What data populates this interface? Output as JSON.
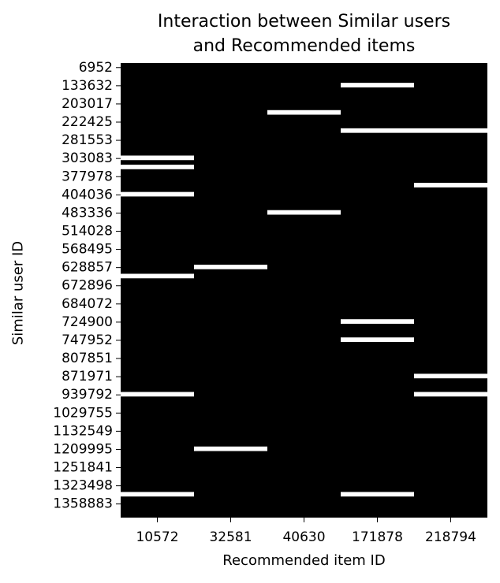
{
  "chart_data": {
    "type": "heatmap",
    "title_line1": "Interaction between Similar users",
    "title_line2": "and Recommended items",
    "xlabel": "Recommended item ID",
    "ylabel": "Similar user ID",
    "x_categories": [
      "10572",
      "32581",
      "40630",
      "171878",
      "218794"
    ],
    "y_tick_labels": [
      "6952",
      "133632",
      "203017",
      "222425",
      "281553",
      "303083",
      "377978",
      "404036",
      "483336",
      "514028",
      "568495",
      "628857",
      "672896",
      "684072",
      "724900",
      "747952",
      "807851",
      "871971",
      "939792",
      "1029755",
      "1132549",
      "1209995",
      "1251841",
      "1323498",
      "1358883"
    ],
    "colors": {
      "background": "#000000",
      "interaction": "#ffffff"
    },
    "legend": "none",
    "grid": false,
    "interactions": [
      {
        "item": "171878",
        "user_row": 2
      },
      {
        "item": "40630",
        "user_row": 5
      },
      {
        "item": "171878",
        "user_row": 7
      },
      {
        "item": "218794",
        "user_row": 7
      },
      {
        "item": "10572",
        "user_row": 10
      },
      {
        "item": "10572",
        "user_row": 11
      },
      {
        "item": "218794",
        "user_row": 13
      },
      {
        "item": "10572",
        "user_row": 14
      },
      {
        "item": "40630",
        "user_row": 16
      },
      {
        "item": "32581",
        "user_row": 22
      },
      {
        "item": "10572",
        "user_row": 23
      },
      {
        "item": "171878",
        "user_row": 28
      },
      {
        "item": "171878",
        "user_row": 30
      },
      {
        "item": "218794",
        "user_row": 34
      },
      {
        "item": "10572",
        "user_row": 36
      },
      {
        "item": "218794",
        "user_row": 36
      },
      {
        "item": "32581",
        "user_row": 42
      },
      {
        "item": "10572",
        "user_row": 47
      },
      {
        "item": "171878",
        "user_row": 47
      }
    ]
  }
}
